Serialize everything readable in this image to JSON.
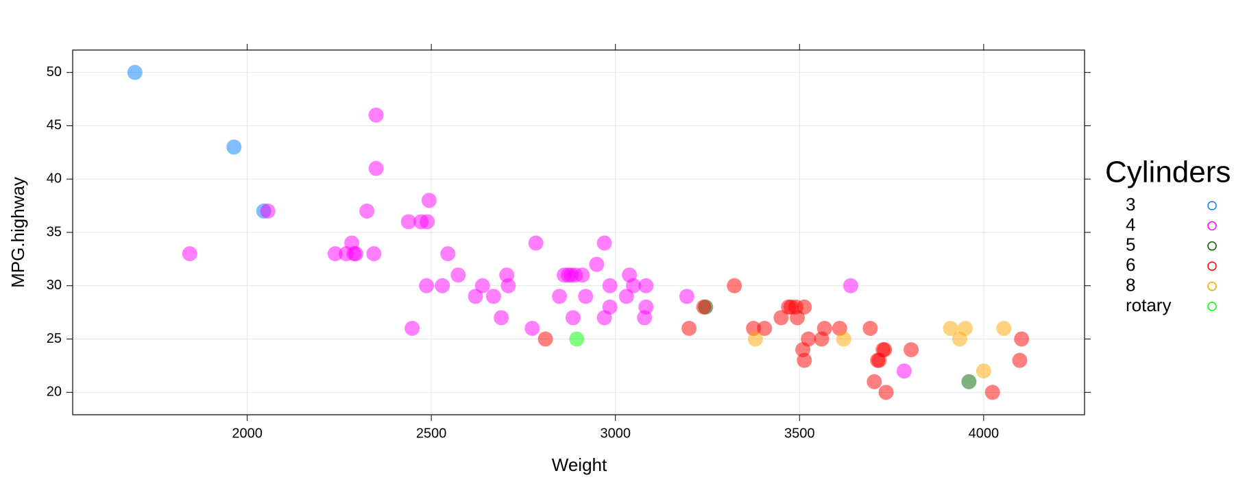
{
  "chart_data": {
    "type": "scatter",
    "x_label": "Weight",
    "y_label": "MPG.highway",
    "legend_title": "Cylinders",
    "xlim": [
      1526,
      4274
    ],
    "ylim": [
      17.9,
      52.1
    ],
    "xticks": [
      2000,
      2500,
      3000,
      3500,
      4000
    ],
    "yticks": [
      20,
      25,
      30,
      35,
      40,
      45,
      50
    ],
    "grid": true,
    "legend": "right",
    "series": [
      {
        "name": "3",
        "color": "#0080ff",
        "x": [
          1695,
          1964,
          2045
        ],
        "values": [
          50,
          43,
          37
        ]
      },
      {
        "name": "4",
        "color": "#ff00ff",
        "x": [
          1844,
          2056,
          2239,
          2269,
          2284,
          2290,
          2295,
          2325,
          2344,
          2350,
          2350,
          2438,
          2448,
          2472,
          2489,
          2487,
          2494,
          2530,
          2545,
          2573,
          2620,
          2639,
          2669,
          2690,
          2705,
          2709,
          2774,
          2784,
          2848,
          2861,
          2872,
          2880,
          2885,
          2891,
          2910,
          2919,
          2949,
          2970,
          2970,
          2985,
          2985,
          3030,
          3038,
          3049,
          3079,
          3083,
          3083,
          3194,
          3639,
          3784
        ],
        "values": [
          33,
          37,
          33,
          33,
          34,
          33,
          33,
          37,
          33,
          46,
          41,
          36,
          26,
          36,
          36,
          30,
          38,
          30,
          33,
          31,
          29,
          30,
          29,
          27,
          31,
          30,
          26,
          34,
          29,
          31,
          31,
          31,
          27,
          31,
          31,
          29,
          32,
          27,
          34,
          28,
          30,
          29,
          31,
          30,
          27,
          28,
          30,
          29,
          30,
          22
        ]
      },
      {
        "name": "5",
        "color": "#006400",
        "x": [
          3245,
          3960
        ],
        "values": [
          28,
          21
        ]
      },
      {
        "name": "6",
        "color": "#ff0000",
        "x": [
          2810,
          3200,
          3240,
          3323,
          3375,
          3405,
          3450,
          3470,
          3477,
          3490,
          3494,
          3513,
          3509,
          3524,
          3513,
          3560,
          3568,
          3609,
          3692,
          3703,
          3712,
          3716,
          3727,
          3731,
          3735,
          3803,
          4024,
          4098,
          4103
        ],
        "values": [
          25,
          26,
          28,
          30,
          26,
          26,
          27,
          28,
          28,
          28,
          27,
          28,
          24,
          25,
          23,
          25,
          26,
          26,
          26,
          21,
          23,
          23,
          24,
          24,
          20,
          24,
          20,
          23,
          25
        ]
      },
      {
        "name": "8",
        "color": "#ffa500",
        "x": [
          3380,
          3620,
          3910,
          3935,
          3950,
          4000,
          4055
        ],
        "values": [
          25,
          25,
          26,
          25,
          26,
          22,
          26
        ]
      },
      {
        "name": "rotary",
        "color": "#00ff00",
        "x": [
          2895
        ],
        "values": [
          25
        ]
      }
    ]
  }
}
